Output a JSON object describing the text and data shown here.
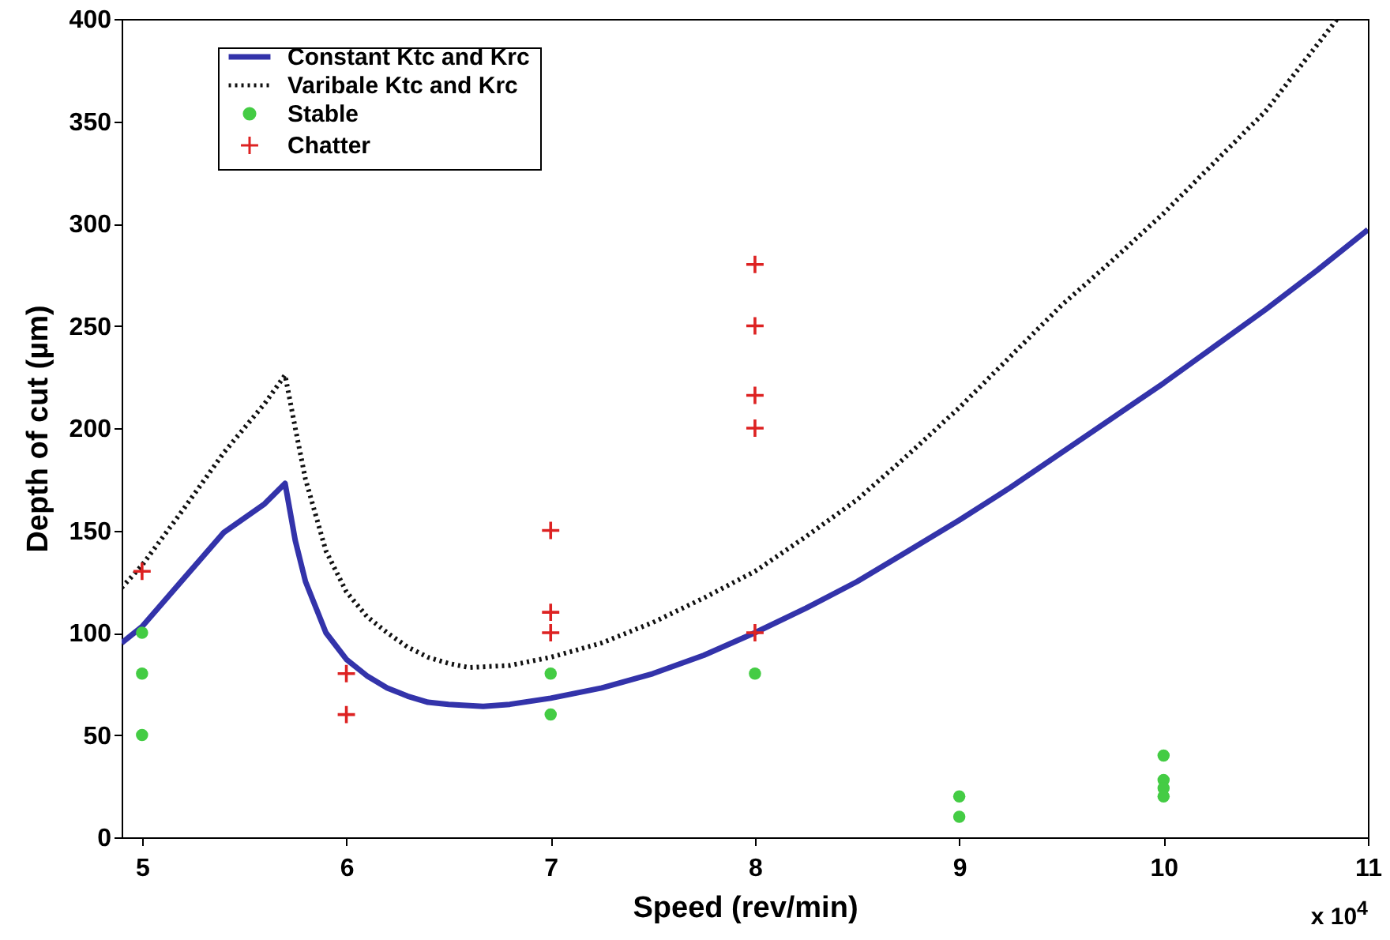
{
  "chart_data": {
    "type": "line",
    "xlabel": "Speed (rev/min)",
    "ylabel": "Depth of cut (µm)",
    "annotations": [
      "x 10$^{4}$"
    ],
    "xlim": [
      4.9,
      11
    ],
    "xticks": [
      5,
      6,
      7,
      8,
      9,
      10,
      11
    ],
    "ylim": [
      0,
      400
    ],
    "yticks": [
      0,
      50,
      100,
      150,
      200,
      250,
      300,
      350,
      400
    ],
    "grid": false,
    "legend": "top left",
    "series": [
      {
        "name": "Constant Ktc and Krc",
        "line_style": "solid",
        "color": "#3333aa",
        "x": [
          4.9,
          5,
          5.2,
          5.4,
          5.6,
          5.7,
          5.75,
          5.8,
          5.9,
          6,
          6.1,
          6.2,
          6.3,
          6.4,
          6.5,
          6.67,
          6.8,
          7,
          7.25,
          7.5,
          7.75,
          8,
          8.25,
          8.5,
          8.75,
          9,
          9.25,
          9.5,
          9.75,
          10,
          10.25,
          10.5,
          10.75,
          11
        ],
        "values": [
          95,
          103,
          126,
          149,
          163,
          173,
          145,
          125,
          100,
          87,
          79,
          73,
          69,
          66,
          65,
          64,
          65,
          68,
          73,
          80,
          89,
          100,
          112,
          125,
          140,
          155,
          171,
          188,
          205,
          222,
          240,
          258,
          277,
          297
        ]
      },
      {
        "name": "Varibale Ktc and Krc",
        "line_style": "dotted",
        "color": "#111111",
        "x": [
          4.9,
          5,
          5.2,
          5.4,
          5.6,
          5.7,
          5.75,
          5.8,
          5.9,
          6,
          6.1,
          6.2,
          6.3,
          6.4,
          6.5,
          6.6,
          6.8,
          7,
          7.25,
          7.5,
          7.75,
          8,
          8.25,
          8.5,
          8.75,
          9,
          9.25,
          9.5,
          9.75,
          10,
          10.25,
          10.5,
          10.85
        ],
        "values": [
          122,
          133,
          160,
          188,
          212,
          226,
          200,
          175,
          140,
          120,
          108,
          100,
          93,
          88,
          85,
          83,
          84,
          88,
          95,
          105,
          117,
          130,
          147,
          165,
          187,
          210,
          235,
          260,
          282,
          305,
          330,
          355,
          400
        ]
      },
      {
        "name": "Stable",
        "type": "scatter",
        "marker": "circle",
        "color": "#44cc44",
        "x": [
          5,
          5,
          5,
          7,
          7,
          8,
          9,
          9,
          10,
          10,
          10,
          10
        ],
        "values": [
          100,
          80,
          50,
          80,
          60,
          80,
          20,
          10,
          40,
          28,
          24,
          20
        ]
      },
      {
        "name": "Chatter",
        "type": "scatter",
        "marker": "cross",
        "color": "#dd2222",
        "x": [
          5,
          6,
          6,
          7,
          7,
          7,
          8,
          8,
          8,
          8,
          8
        ],
        "values": [
          130,
          80,
          60,
          150,
          110,
          100,
          280,
          250,
          216,
          200,
          100
        ]
      }
    ]
  }
}
